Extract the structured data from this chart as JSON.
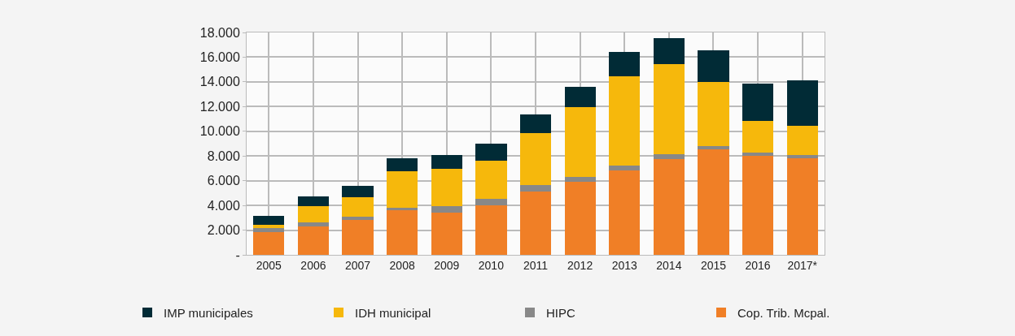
{
  "chart_data": {
    "type": "bar",
    "stacked": true,
    "categories": [
      "2005",
      "2006",
      "2007",
      "2008",
      "2009",
      "2010",
      "2011",
      "2012",
      "2013",
      "2014",
      "2015",
      "2016",
      "2017*"
    ],
    "series": [
      {
        "name": "Cop. Trib. Mcpal.",
        "color": "#f07f26",
        "values": [
          1830,
          2290,
          2800,
          3610,
          3440,
          4000,
          5100,
          5910,
          6800,
          7760,
          8540,
          8010,
          7820
        ]
      },
      {
        "name": "HIPC",
        "color": "#888888",
        "values": [
          340,
          320,
          260,
          190,
          510,
          530,
          550,
          380,
          450,
          380,
          260,
          260,
          250
        ]
      },
      {
        "name": "IDH municipal",
        "color": "#f6b80c",
        "values": [
          250,
          1340,
          1590,
          2940,
          3000,
          3100,
          4210,
          5670,
          7200,
          7330,
          5200,
          2550,
          2360
        ]
      },
      {
        "name": "IMP municipales",
        "color": "#012b36",
        "values": [
          750,
          810,
          940,
          1080,
          1120,
          1400,
          1530,
          1660,
          1980,
          2100,
          2550,
          3060,
          3700
        ]
      }
    ],
    "ylim": [
      0,
      18000
    ],
    "yticks": [
      {
        "value": 0,
        "label": "-"
      },
      {
        "value": 2000,
        "label": "2.000"
      },
      {
        "value": 4000,
        "label": "4.000"
      },
      {
        "value": 6000,
        "label": "6.000"
      },
      {
        "value": 8000,
        "label": "8.000"
      },
      {
        "value": 10000,
        "label": "10.000"
      },
      {
        "value": 12000,
        "label": "12.000"
      },
      {
        "value": 14000,
        "label": "14.000"
      },
      {
        "value": 16000,
        "label": "16.000"
      },
      {
        "value": 18000,
        "label": "18.000"
      }
    ],
    "grid": true,
    "legend": "bottom"
  }
}
